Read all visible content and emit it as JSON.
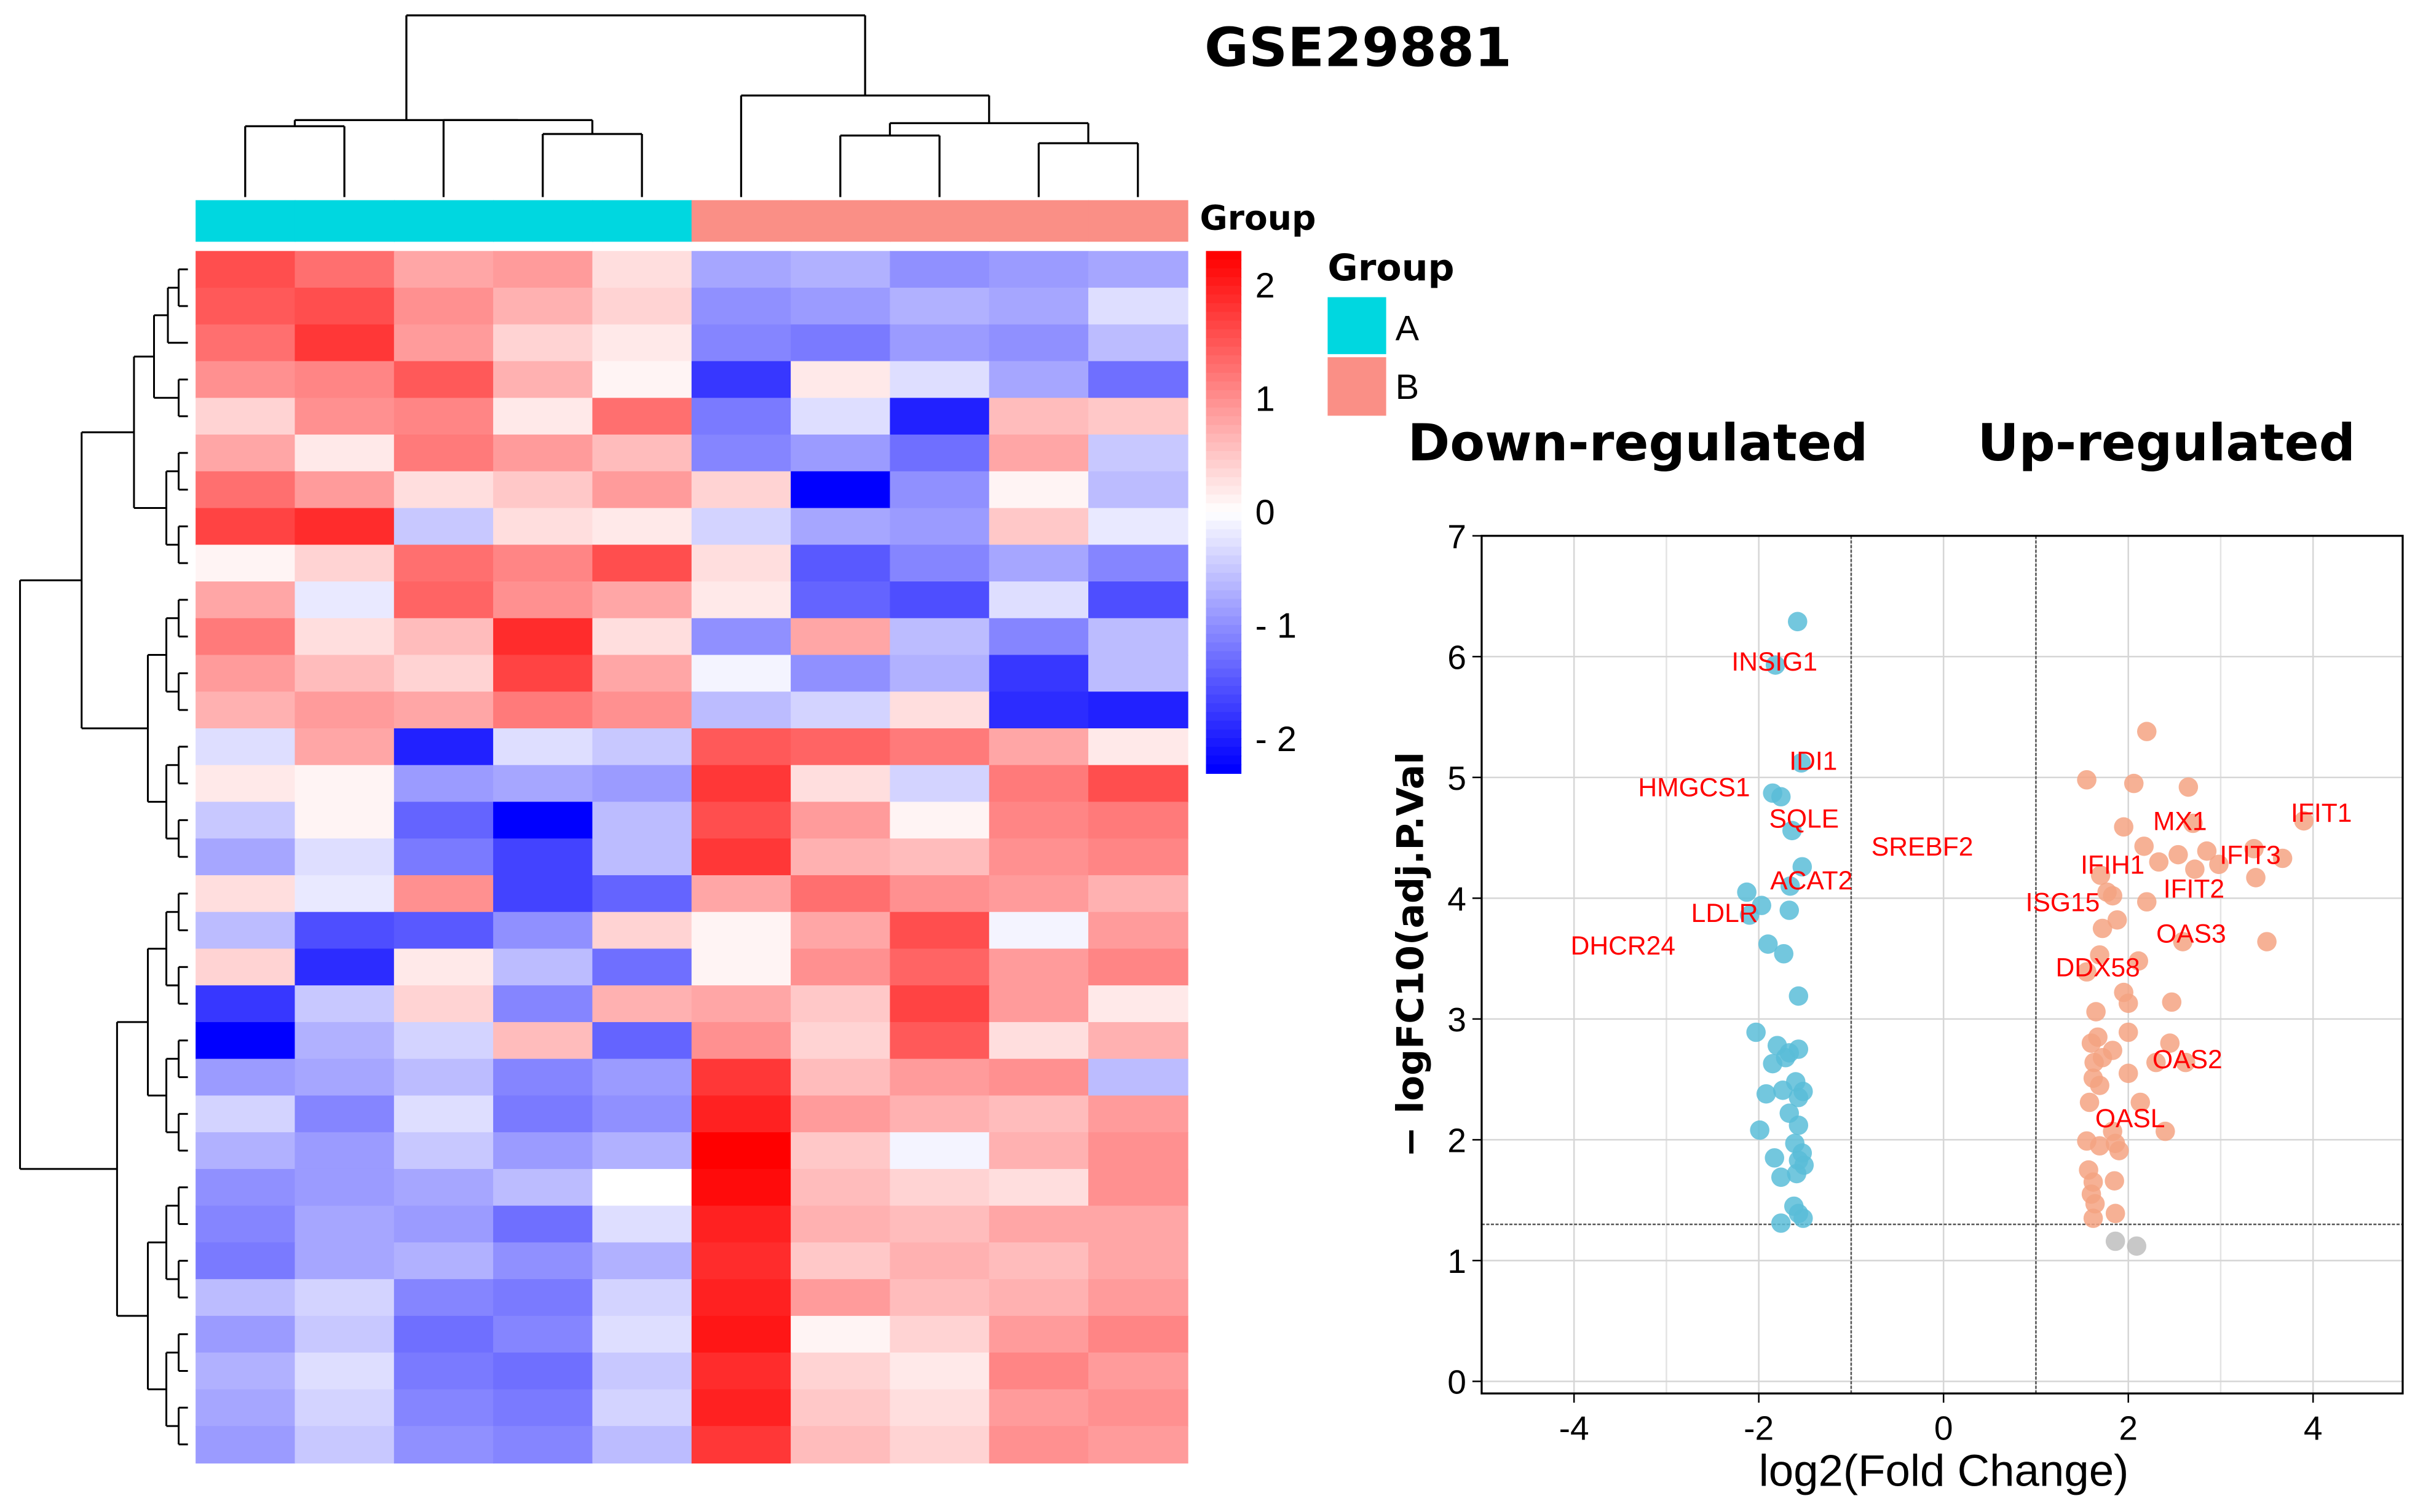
{
  "title": "GSE29881",
  "colors": {
    "group_A": "#00D7E0",
    "group_B": "#FA8F86",
    "down_point": "#5BBDD8",
    "up_point": "#F4A383",
    "ns_point": "#BEBEBE",
    "label": "#FF0000"
  },
  "chart_data": [
    {
      "type": "heatmap",
      "annotation_title": "Group",
      "legend": {
        "title": "Group",
        "entries": [
          {
            "label": "A",
            "color": "#00D7E0"
          },
          {
            "label": "B",
            "color": "#FA8F86"
          }
        ]
      },
      "column_groups": [
        "A",
        "A",
        "A",
        "A",
        "A",
        "B",
        "B",
        "B",
        "B",
        "B"
      ],
      "colorbar": {
        "range": [
          -2.3,
          2.3
        ],
        "ticks": [
          {
            "value": 2,
            "label": "2"
          },
          {
            "value": 1,
            "label": "1"
          },
          {
            "value": 0,
            "label": "0"
          },
          {
            "value": -1,
            "label": "- 1"
          },
          {
            "value": -2,
            "label": "- 2"
          }
        ]
      },
      "matrix": [
        [
          1.6,
          1.3,
          0.8,
          0.9,
          0.3,
          -0.8,
          -0.7,
          -1.0,
          -0.9,
          -0.8
        ],
        [
          1.5,
          1.6,
          1.0,
          0.7,
          0.4,
          -1.0,
          -0.9,
          -0.7,
          -0.8,
          -0.3
        ],
        [
          1.3,
          1.8,
          0.9,
          0.4,
          0.2,
          -1.1,
          -1.2,
          -0.9,
          -1.0,
          -0.6
        ],
        [
          1.0,
          1.1,
          1.5,
          0.7,
          0.1,
          -1.8,
          0.2,
          -0.3,
          -0.8,
          -1.3
        ],
        [
          0.4,
          1.0,
          1.1,
          0.2,
          1.3,
          -1.2,
          -0.3,
          -2.0,
          0.6,
          0.5
        ],
        [
          0.8,
          0.2,
          1.2,
          0.9,
          0.6,
          -1.1,
          -0.9,
          -1.3,
          0.8,
          -0.5
        ],
        [
          1.3,
          0.9,
          0.3,
          0.5,
          0.9,
          0.4,
          -2.3,
          -1.0,
          0.1,
          -0.6
        ],
        [
          1.7,
          1.9,
          -0.5,
          0.3,
          0.2,
          -0.4,
          -0.8,
          -0.9,
          0.5,
          -0.2
        ],
        [
          0.1,
          0.4,
          1.3,
          1.1,
          1.6,
          0.3,
          -1.5,
          -1.1,
          -0.8,
          -1.1
        ],
        [
          0.8,
          -0.2,
          1.4,
          1.0,
          0.8,
          0.2,
          -1.4,
          -1.6,
          -0.3,
          -1.6
        ],
        [
          1.2,
          0.3,
          0.6,
          1.9,
          0.3,
          -1.0,
          0.8,
          -0.6,
          -1.1,
          -0.6
        ],
        [
          0.9,
          0.6,
          0.4,
          1.7,
          0.8,
          -0.1,
          -1.0,
          -0.7,
          -1.8,
          -0.6
        ],
        [
          0.7,
          0.9,
          0.8,
          1.2,
          1.0,
          -0.6,
          -0.4,
          0.3,
          -1.9,
          -2.0
        ],
        [
          -0.3,
          0.8,
          -2.0,
          -0.3,
          -0.5,
          1.5,
          1.4,
          1.2,
          0.8,
          0.2
        ],
        [
          0.2,
          0.1,
          -0.9,
          -0.8,
          -0.9,
          1.8,
          0.3,
          -0.4,
          1.2,
          1.6
        ],
        [
          -0.5,
          0.1,
          -1.4,
          -2.3,
          -0.6,
          1.6,
          0.9,
          0.1,
          1.1,
          1.2
        ],
        [
          -0.8,
          -0.3,
          -1.2,
          -1.7,
          -0.6,
          1.8,
          0.7,
          0.6,
          1.0,
          1.1
        ],
        [
          0.3,
          -0.2,
          1.0,
          -1.7,
          -1.4,
          0.8,
          1.3,
          1.0,
          0.9,
          0.7
        ],
        [
          -0.6,
          -1.6,
          -1.5,
          -1.0,
          0.4,
          0.1,
          0.8,
          1.6,
          -0.1,
          0.9
        ],
        [
          0.4,
          -1.9,
          0.2,
          -0.6,
          -1.3,
          0.1,
          1.0,
          1.4,
          0.9,
          1.1
        ],
        [
          -1.8,
          -0.5,
          0.4,
          -1.1,
          0.7,
          0.8,
          0.5,
          1.7,
          0.9,
          0.2
        ],
        [
          -2.3,
          -0.7,
          -0.4,
          0.6,
          -1.4,
          1.0,
          0.4,
          1.5,
          0.3,
          0.7
        ],
        [
          -0.9,
          -0.8,
          -0.6,
          -1.1,
          -0.9,
          1.8,
          0.6,
          0.9,
          1.0,
          -0.6
        ],
        [
          -0.4,
          -1.1,
          -0.3,
          -1.2,
          -1.0,
          2.0,
          0.9,
          0.7,
          0.6,
          0.9
        ],
        [
          -0.7,
          -0.9,
          -0.5,
          -0.9,
          -0.7,
          2.3,
          0.5,
          -0.1,
          0.7,
          1.0
        ],
        [
          -1.0,
          -0.9,
          -0.8,
          -0.6,
          0.0,
          2.2,
          0.6,
          0.4,
          0.3,
          1.0
        ],
        [
          -1.1,
          -0.8,
          -0.9,
          -1.3,
          -0.3,
          2.0,
          0.7,
          0.6,
          0.8,
          0.8
        ],
        [
          -1.2,
          -0.8,
          -0.7,
          -1.0,
          -0.7,
          1.9,
          0.5,
          0.7,
          0.6,
          0.8
        ],
        [
          -0.6,
          -0.4,
          -1.1,
          -1.2,
          -0.4,
          2.0,
          0.9,
          0.6,
          0.7,
          0.9
        ],
        [
          -0.9,
          -0.5,
          -1.3,
          -1.1,
          -0.3,
          2.1,
          0.1,
          0.4,
          0.9,
          1.1
        ],
        [
          -0.7,
          -0.3,
          -1.2,
          -1.3,
          -0.5,
          1.9,
          0.4,
          0.2,
          1.1,
          0.9
        ],
        [
          -0.8,
          -0.4,
          -1.1,
          -1.2,
          -0.4,
          2.0,
          0.5,
          0.3,
          0.9,
          1.0
        ],
        [
          -0.9,
          -0.5,
          -1.0,
          -1.1,
          -0.6,
          1.8,
          0.6,
          0.4,
          1.0,
          0.9
        ]
      ]
    },
    {
      "type": "scatter",
      "xlabel": "log2(Fold Change)",
      "ylabel": "− logFC10(adj.P.Val",
      "xlim": [
        -5,
        4.97
      ],
      "ylim": [
        -0.1,
        7
      ],
      "xticks": [
        -4,
        -2,
        0,
        2,
        4
      ],
      "yticks": [
        0,
        1,
        2,
        3,
        4,
        5,
        6,
        7
      ],
      "grid": true,
      "thresholds": {
        "x": [
          -1,
          1
        ],
        "y": 1.3
      },
      "annotations_top": {
        "left": "Down-regulated",
        "right": "Up-regulated"
      },
      "series": [
        {
          "name": "down",
          "points": [
            [
              -1.58,
              6.29
            ],
            [
              -1.82,
              5.93
            ],
            [
              -1.54,
              5.12
            ],
            [
              -1.85,
              4.87
            ],
            [
              -1.76,
              4.84
            ],
            [
              -1.64,
              4.56
            ],
            [
              -1.53,
              4.26
            ],
            [
              -1.66,
              4.1
            ],
            [
              -2.13,
              4.05
            ],
            [
              -1.97,
              3.94
            ],
            [
              -2.1,
              3.86
            ],
            [
              -1.67,
              3.9
            ],
            [
              -1.9,
              3.62
            ],
            [
              -1.73,
              3.54
            ],
            [
              -1.57,
              3.19
            ],
            [
              -2.03,
              2.89
            ],
            [
              -1.8,
              2.78
            ],
            [
              -1.57,
              2.75
            ],
            [
              -1.67,
              2.72
            ],
            [
              -1.71,
              2.68
            ],
            [
              -1.85,
              2.63
            ],
            [
              -1.6,
              2.48
            ],
            [
              -1.74,
              2.41
            ],
            [
              -1.92,
              2.38
            ],
            [
              -1.52,
              2.4
            ],
            [
              -1.57,
              2.35
            ],
            [
              -1.67,
              2.22
            ],
            [
              -1.57,
              2.12
            ],
            [
              -1.99,
              2.08
            ],
            [
              -1.61,
              1.97
            ],
            [
              -1.53,
              1.89
            ],
            [
              -1.83,
              1.85
            ],
            [
              -1.57,
              1.83
            ],
            [
              -1.51,
              1.79
            ],
            [
              -1.59,
              1.72
            ],
            [
              -1.76,
              1.69
            ],
            [
              -1.62,
              1.45
            ],
            [
              -1.57,
              1.39
            ],
            [
              -1.52,
              1.35
            ],
            [
              -1.76,
              1.31
            ]
          ]
        },
        {
          "name": "up",
          "points": [
            [
              2.2,
              5.38
            ],
            [
              1.55,
              4.98
            ],
            [
              2.06,
              4.95
            ],
            [
              2.65,
              4.92
            ],
            [
              2.7,
              4.62
            ],
            [
              1.95,
              4.59
            ],
            [
              3.9,
              4.64
            ],
            [
              2.17,
              4.43
            ],
            [
              2.33,
              4.3
            ],
            [
              2.54,
              4.36
            ],
            [
              2.85,
              4.39
            ],
            [
              2.72,
              4.24
            ],
            [
              2.98,
              4.28
            ],
            [
              3.36,
              4.41
            ],
            [
              3.67,
              4.33
            ],
            [
              3.38,
              4.17
            ],
            [
              1.7,
              4.19
            ],
            [
              1.77,
              4.05
            ],
            [
              1.83,
              4.02
            ],
            [
              2.2,
              3.97
            ],
            [
              1.88,
              3.82
            ],
            [
              1.72,
              3.75
            ],
            [
              2.59,
              3.64
            ],
            [
              3.5,
              3.64
            ],
            [
              1.69,
              3.53
            ],
            [
              2.11,
              3.48
            ],
            [
              1.55,
              3.39
            ],
            [
              1.95,
              3.22
            ],
            [
              2.0,
              3.13
            ],
            [
              2.47,
              3.14
            ],
            [
              1.65,
              3.06
            ],
            [
              2.0,
              2.89
            ],
            [
              1.67,
              2.85
            ],
            [
              1.6,
              2.8
            ],
            [
              1.83,
              2.74
            ],
            [
              1.72,
              2.68
            ],
            [
              2.45,
              2.8
            ],
            [
              1.63,
              2.64
            ],
            [
              2.3,
              2.64
            ],
            [
              2.62,
              2.64
            ],
            [
              2.0,
              2.55
            ],
            [
              1.62,
              2.51
            ],
            [
              1.69,
              2.45
            ],
            [
              2.13,
              2.31
            ],
            [
              1.58,
              2.31
            ],
            [
              2.4,
              2.07
            ],
            [
              1.83,
              2.07
            ],
            [
              1.55,
              1.99
            ],
            [
              1.69,
              1.95
            ],
            [
              1.86,
              1.97
            ],
            [
              1.9,
              1.91
            ],
            [
              1.57,
              1.75
            ],
            [
              1.62,
              1.65
            ],
            [
              1.85,
              1.66
            ],
            [
              1.6,
              1.55
            ],
            [
              1.64,
              1.47
            ],
            [
              1.86,
              1.39
            ],
            [
              1.62,
              1.35
            ]
          ]
        },
        {
          "name": "ns",
          "points": [
            [
              1.86,
              1.16
            ],
            [
              2.09,
              1.12
            ]
          ]
        }
      ],
      "labels": [
        {
          "text": "INSIG1",
          "x": -1.83,
          "y": 5.96
        },
        {
          "text": "IDI1",
          "x": -1.41,
          "y": 5.14
        },
        {
          "text": "HMGCS1",
          "x": -2.7,
          "y": 4.92
        },
        {
          "text": "SQLE",
          "x": -1.51,
          "y": 4.66
        },
        {
          "text": "SREBF2",
          "x": -0.23,
          "y": 4.43
        },
        {
          "text": "ACAT2",
          "x": -1.43,
          "y": 4.15
        },
        {
          "text": "LDLR",
          "x": -2.37,
          "y": 3.88
        },
        {
          "text": "DHCR24",
          "x": -3.47,
          "y": 3.61
        },
        {
          "text": "MX1",
          "x": 2.56,
          "y": 4.64
        },
        {
          "text": "IFIT1",
          "x": 4.09,
          "y": 4.71
        },
        {
          "text": "IFIH1",
          "x": 1.83,
          "y": 4.28
        },
        {
          "text": "IFIT3",
          "x": 3.32,
          "y": 4.36
        },
        {
          "text": "IFIT2",
          "x": 2.71,
          "y": 4.08
        },
        {
          "text": "ISG15",
          "x": 1.29,
          "y": 3.97
        },
        {
          "text": "OAS3",
          "x": 2.68,
          "y": 3.71
        },
        {
          "text": "DDX58",
          "x": 1.67,
          "y": 3.43
        },
        {
          "text": "OAS2",
          "x": 2.64,
          "y": 2.67
        },
        {
          "text": "OASL",
          "x": 2.02,
          "y": 2.18
        }
      ]
    }
  ]
}
